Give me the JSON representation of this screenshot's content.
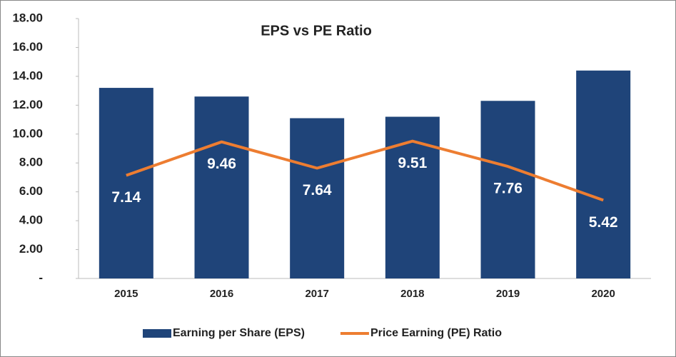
{
  "chart_data": {
    "type": "bar_line",
    "title": "EPS vs PE Ratio",
    "categories": [
      "2015",
      "2016",
      "2017",
      "2018",
      "2019",
      "2020"
    ],
    "series": [
      {
        "name": "Earning per Share (EPS)",
        "type": "bar",
        "color": "#1f4479",
        "values": [
          13.2,
          12.6,
          11.1,
          11.2,
          12.3,
          14.4
        ]
      },
      {
        "name": "Price Earning (PE) Ratio",
        "type": "line",
        "color": "#ed7d31",
        "values": [
          7.14,
          9.46,
          7.64,
          9.51,
          7.76,
          5.42
        ]
      }
    ],
    "ylim": [
      0,
      18
    ],
    "yticks": [
      {
        "value": 0,
        "label": "-"
      },
      {
        "value": 2,
        "label": "2.00"
      },
      {
        "value": 4,
        "label": "4.00"
      },
      {
        "value": 6,
        "label": "6.00"
      },
      {
        "value": 8,
        "label": "8.00"
      },
      {
        "value": 10,
        "label": "10.00"
      },
      {
        "value": 12,
        "label": "12.00"
      },
      {
        "value": 14,
        "label": "14.00"
      },
      {
        "value": 16,
        "label": "16.00"
      },
      {
        "value": 18,
        "label": "18.00"
      }
    ],
    "legend": "bottom"
  }
}
